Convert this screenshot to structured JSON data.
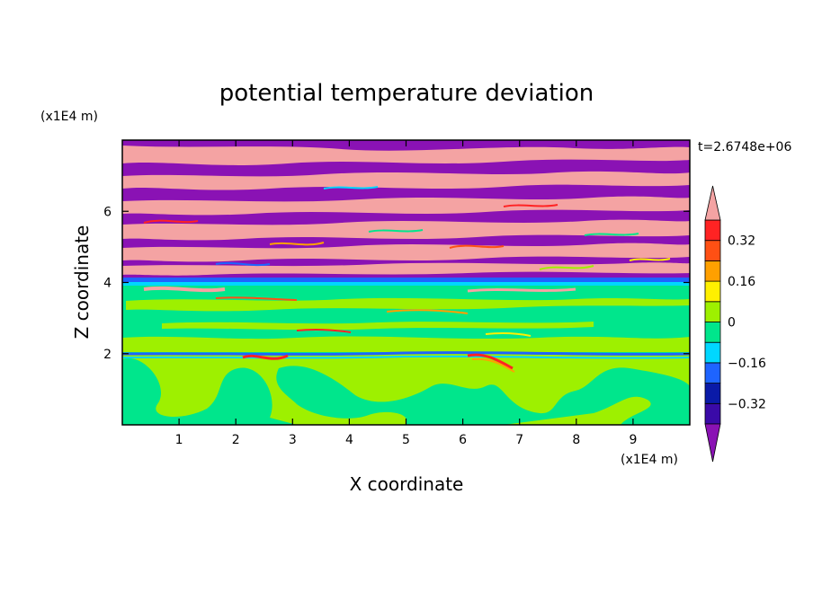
{
  "chart_data": {
    "type": "heatmap",
    "title": "potential temperature deviation",
    "xlabel": "X coordinate",
    "ylabel": "Z coordinate",
    "x_unit": "(x1E4 m)",
    "y_unit": "(x1E4 m)",
    "time_label": "t=2.6748e+06",
    "xlim": [
      0,
      10
    ],
    "ylim": [
      0,
      8
    ],
    "x_ticks": [
      "1",
      "2",
      "3",
      "4",
      "5",
      "6",
      "7",
      "8",
      "9"
    ],
    "y_ticks": [
      "2",
      "4",
      "6"
    ],
    "colorbar": {
      "levels": [
        -0.4,
        -0.32,
        -0.24,
        -0.16,
        -0.08,
        0,
        0.08,
        0.16,
        0.24,
        0.32,
        0.4
      ],
      "labels": [
        "0.32",
        "0.16",
        "0",
        "−0.16",
        "−0.32"
      ],
      "label_values": [
        0.32,
        0.16,
        0,
        -0.16,
        -0.32
      ],
      "colors": [
        "#8a12b4",
        "#3a0aa8",
        "#0a1aa8",
        "#1e64ff",
        "#00d7ff",
        "#00e68c",
        "#9ef000",
        "#fff000",
        "#ffa000",
        "#ff5014",
        "#ff2323",
        "#f4a3a3"
      ],
      "under_color": "#8a12b4",
      "over_color": "#f4a3a3"
    },
    "field_colors": {
      "upper_pink": "#f4a3a3",
      "upper_purple": "#8a12b4",
      "mid_green": "#00e68c",
      "lower_lime": "#9ef000",
      "layer_blue": "#1e64ff",
      "layer_cyan": "#00d7ff"
    }
  }
}
